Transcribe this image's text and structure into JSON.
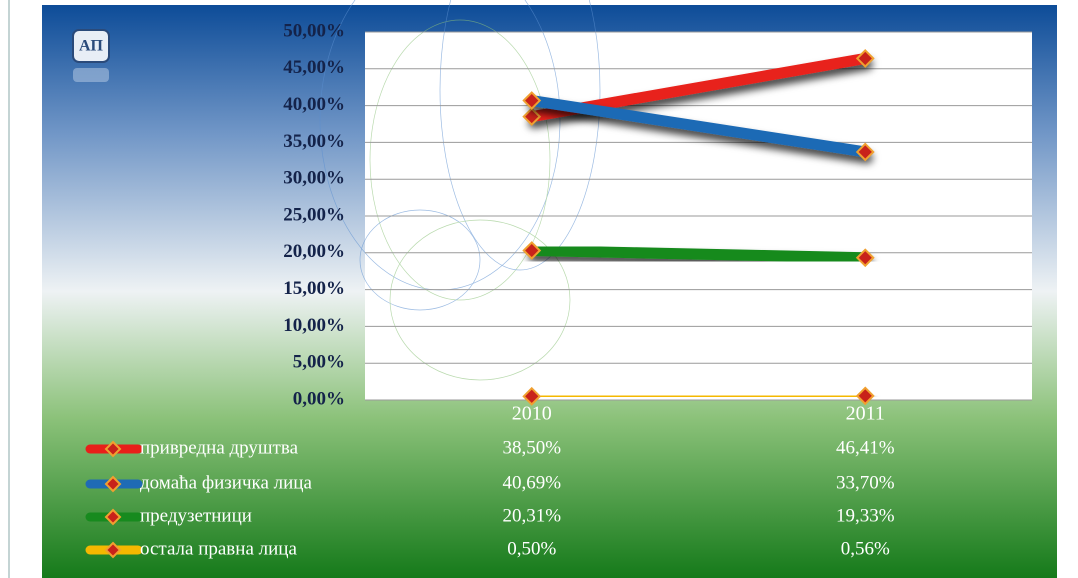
{
  "chart_data": {
    "type": "line",
    "categories": [
      "2010",
      "2011"
    ],
    "ylim": [
      0,
      50
    ],
    "yticks": [
      {
        "value": 0,
        "label": "0,00%"
      },
      {
        "value": 5,
        "label": "5,00%"
      },
      {
        "value": 10,
        "label": "10,00%"
      },
      {
        "value": 15,
        "label": "15,00%"
      },
      {
        "value": 20,
        "label": "20,00%"
      },
      {
        "value": 25,
        "label": "25,00%"
      },
      {
        "value": 30,
        "label": "30,00%"
      },
      {
        "value": 35,
        "label": "35,00%"
      },
      {
        "value": 40,
        "label": "40,00%"
      },
      {
        "value": 45,
        "label": "45,00%"
      },
      {
        "value": 50,
        "label": "50,00%"
      }
    ],
    "grid": true,
    "series": [
      {
        "name": "привредна друштва",
        "color": "#e8201a",
        "values": [
          38.5,
          46.41
        ],
        "value_labels": [
          "38,50%",
          "46,41%"
        ]
      },
      {
        "name": "домаћа физичка лица",
        "color": "#1f6bb5",
        "values": [
          40.69,
          33.7
        ],
        "value_labels": [
          "40,69%",
          "33,70%"
        ]
      },
      {
        "name": "предузетници",
        "color": "#178a1e",
        "values": [
          20.31,
          19.33
        ],
        "value_labels": [
          "20,31%",
          "19,33%"
        ]
      },
      {
        "name": "остала правна лица",
        "color": "#f5b800",
        "values": [
          0.5,
          0.56
        ],
        "value_labels": [
          "0,50%",
          "0,56%"
        ]
      }
    ]
  }
}
